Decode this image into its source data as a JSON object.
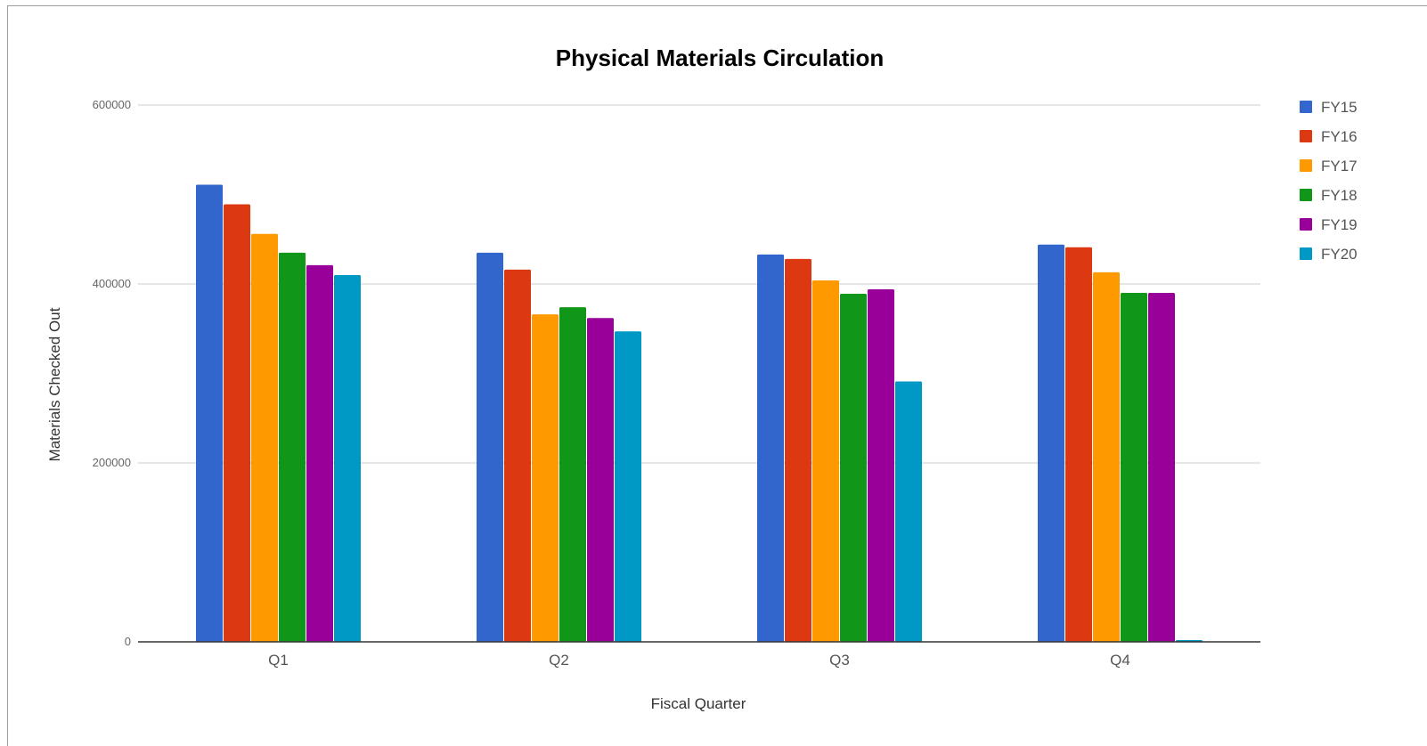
{
  "chart_data": {
    "type": "bar",
    "title": "Physical Materials Circulation",
    "xlabel": "Fiscal Quarter",
    "ylabel": "Materials Checked Out",
    "ylim": [
      0,
      600000
    ],
    "yticks": [
      "0",
      "200000",
      "400000",
      "600000"
    ],
    "categories": [
      "Q1",
      "Q2",
      "Q3",
      "Q4"
    ],
    "grid": true,
    "legend_position": "right",
    "series": [
      {
        "name": "FY15",
        "color": "#3366cc",
        "values": [
          511000,
          435000,
          433000,
          444000
        ]
      },
      {
        "name": "FY16",
        "color": "#dc3912",
        "values": [
          489000,
          416000,
          428000,
          441000
        ]
      },
      {
        "name": "FY17",
        "color": "#ff9900",
        "values": [
          456000,
          366000,
          404000,
          413000
        ]
      },
      {
        "name": "FY18",
        "color": "#109618",
        "values": [
          435000,
          374000,
          389000,
          390000
        ]
      },
      {
        "name": "FY19",
        "color": "#990099",
        "values": [
          421000,
          362000,
          394000,
          390000
        ]
      },
      {
        "name": "FY20",
        "color": "#0099c6",
        "values": [
          410000,
          347000,
          291000,
          2000
        ]
      }
    ]
  }
}
